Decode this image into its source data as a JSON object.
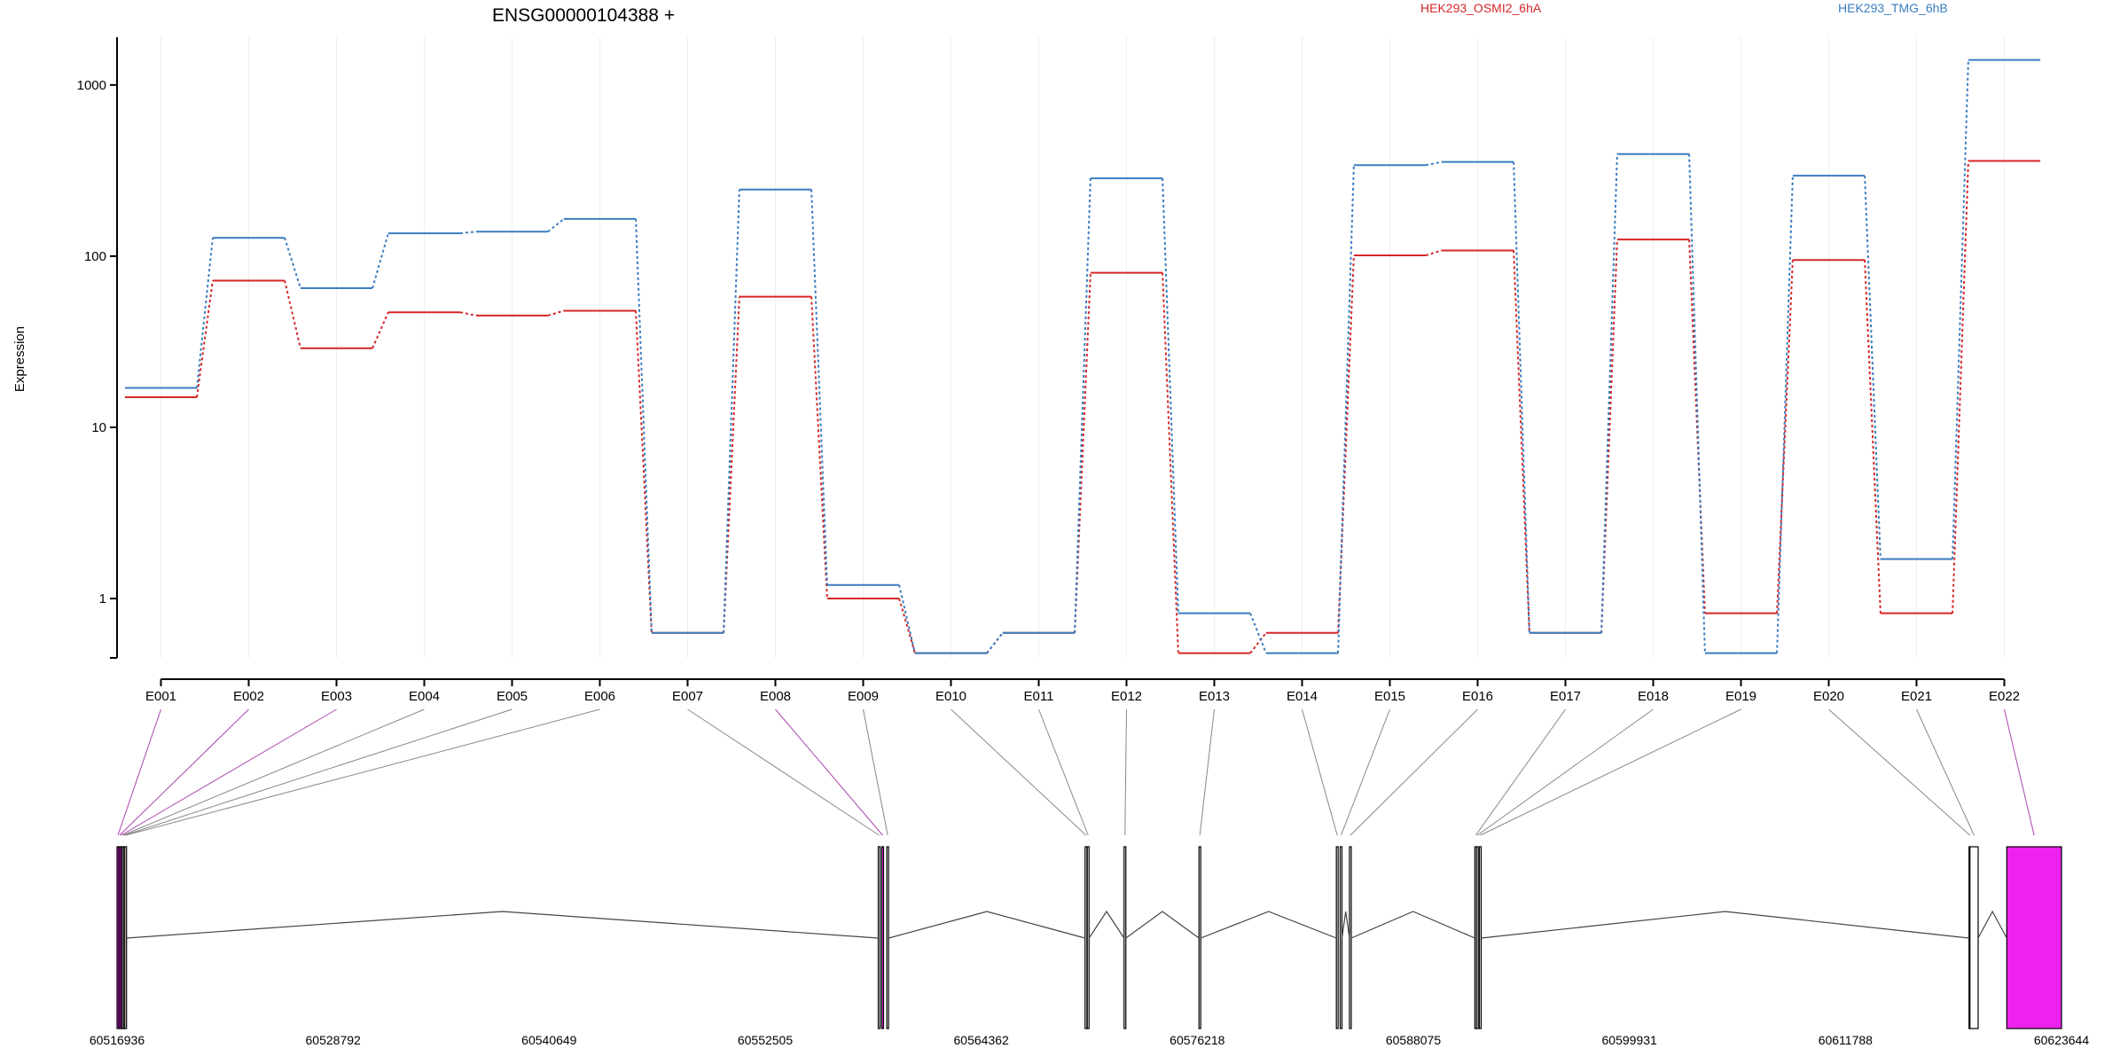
{
  "chart_data": {
    "type": "line",
    "title": "ENSG00000104388 +",
    "ylabel": "Expression",
    "yscale": "log",
    "ylim": [
      0.45,
      1900
    ],
    "yticks": [
      1,
      10,
      100,
      1000
    ],
    "ytick_labels": [
      "1",
      "10",
      "100",
      "1000"
    ],
    "categories": [
      "E001",
      "E002",
      "E003",
      "E004",
      "E005",
      "E006",
      "E007",
      "E008",
      "E009",
      "E010",
      "E011",
      "E012",
      "E013",
      "E014",
      "E015",
      "E016",
      "E017",
      "E018",
      "E019",
      "E020",
      "E021",
      "E022"
    ],
    "series": [
      {
        "name": "HEK293_OSMI2_6hA",
        "color": "#d62728",
        "values": [
          15,
          72,
          29,
          47,
          45,
          48,
          0.63,
          58,
          1.0,
          0.48,
          0.63,
          80,
          0.48,
          0.63,
          101,
          108,
          0.63,
          125,
          0.82,
          95,
          0.82,
          360
        ]
      },
      {
        "name": "HEK293_TMG_6hB",
        "color": "#3a7dc0",
        "values": [
          17,
          128,
          65,
          136,
          139,
          165,
          0.63,
          245,
          1.2,
          0.48,
          0.63,
          285,
          0.82,
          0.48,
          340,
          355,
          0.63,
          395,
          0.48,
          295,
          1.7,
          1400
        ]
      }
    ],
    "gene_model": {
      "coord_range": [
        60516936,
        60623644
      ],
      "coord_ticks": [
        "60516936",
        "60528792",
        "60540649",
        "60552505",
        "60564362",
        "60576218",
        "60588075",
        "60599931",
        "60611788",
        "60623644"
      ],
      "highlight_color": "#ee22ee",
      "exons": [
        {
          "id": "E001",
          "start": 60516936,
          "end": 60517030,
          "highlight": true
        },
        {
          "id": "E002",
          "start": 60517030,
          "end": 60517120,
          "highlight": true
        },
        {
          "id": "E003",
          "start": 60517120,
          "end": 60517210,
          "highlight": true
        },
        {
          "id": "E004",
          "start": 60517210,
          "end": 60517290,
          "highlight": false
        },
        {
          "id": "E005",
          "start": 60517290,
          "end": 60517360,
          "highlight": false
        },
        {
          "id": "E006",
          "start": 60517360,
          "end": 60517430,
          "highlight": false
        },
        {
          "id": "E007",
          "start": 60558710,
          "end": 60558790,
          "highlight": false
        },
        {
          "id": "E008",
          "start": 60558900,
          "end": 60559000,
          "highlight": true
        },
        {
          "id": "E009",
          "start": 60559180,
          "end": 60559260,
          "highlight": false
        },
        {
          "id": "E010",
          "start": 60570060,
          "end": 60570160,
          "highlight": false
        },
        {
          "id": "E011",
          "start": 60570180,
          "end": 60570260,
          "highlight": false
        },
        {
          "id": "E012",
          "start": 60572200,
          "end": 60572290,
          "highlight": false
        },
        {
          "id": "E013",
          "start": 60576310,
          "end": 60576400,
          "highlight": false
        },
        {
          "id": "E014",
          "start": 60583850,
          "end": 60583940,
          "highlight": false
        },
        {
          "id": "E015",
          "start": 60584060,
          "end": 60584120,
          "highlight": false
        },
        {
          "id": "E016",
          "start": 60584570,
          "end": 60584650,
          "highlight": false
        },
        {
          "id": "E017",
          "start": 60591450,
          "end": 60591530,
          "highlight": false
        },
        {
          "id": "E018",
          "start": 60591540,
          "end": 60591610,
          "highlight": false
        },
        {
          "id": "E019",
          "start": 60591700,
          "end": 60591770,
          "highlight": false
        },
        {
          "id": "E020",
          "start": 60618570,
          "end": 60618620,
          "highlight": false
        },
        {
          "id": "E021",
          "start": 60618620,
          "end": 60619070,
          "highlight": false
        },
        {
          "id": "E022",
          "start": 60620640,
          "end": 60623644,
          "highlight": true
        }
      ]
    }
  }
}
